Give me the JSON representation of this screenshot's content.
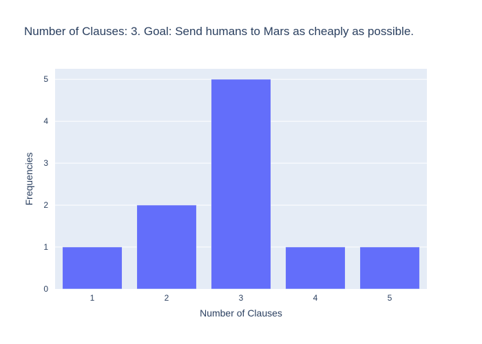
{
  "chart_data": {
    "type": "bar",
    "title": "Number of Clauses: 3. Goal: Send humans to Mars as cheaply as possible.",
    "xlabel": "Number of Clauses",
    "ylabel": "Frequencies",
    "categories": [
      "1",
      "2",
      "3",
      "4",
      "5"
    ],
    "values": [
      1,
      2,
      5,
      1,
      1
    ],
    "ylim": [
      0,
      5.25
    ],
    "yticks": [
      0,
      1,
      2,
      3,
      4,
      5
    ],
    "grid": true,
    "colors": {
      "bar": "#636efa",
      "plot_background": "#e5ecf6",
      "gridline": "#ffffff",
      "text": "#2a3f5f"
    }
  }
}
